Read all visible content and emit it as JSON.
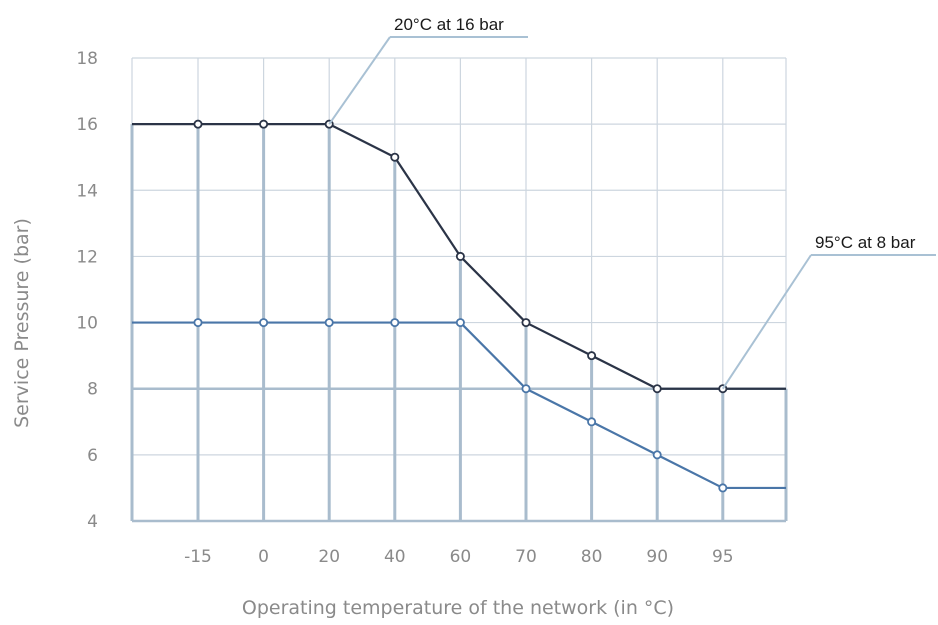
{
  "chart_data": {
    "type": "line",
    "title": "",
    "xlabel": "Operating temperature of the network (in °C)",
    "ylabel": "Service Pressure (bar)",
    "categories": [
      "-15",
      "0",
      "20",
      "40",
      "60",
      "70",
      "80",
      "90",
      "95"
    ],
    "ylim": [
      4,
      18
    ],
    "yticks": [
      4,
      6,
      8,
      10,
      12,
      14,
      16,
      18
    ],
    "grid": true,
    "series": [
      {
        "values": [
          16,
          16,
          16,
          15,
          12,
          10,
          9,
          8,
          8
        ],
        "color": "#2b3447",
        "extend_left": 16,
        "extend_right": 8
      },
      {
        "values": [
          10,
          10,
          10,
          10,
          10,
          8,
          7,
          6,
          5
        ],
        "color": "#4a76a8",
        "extend_left": 10,
        "extend_right": 5
      }
    ],
    "annotations": [
      {
        "text": "20°C at 16 bar",
        "x": "20",
        "y": 16
      },
      {
        "text": "95°C at 8 bar",
        "x": "95",
        "y": 8
      }
    ],
    "colors": {
      "grid_light": "#cdd6df",
      "grid_heavy": "#a9bccd",
      "leader": "#a9c1d4",
      "tick_text": "#8a8a8a"
    }
  }
}
